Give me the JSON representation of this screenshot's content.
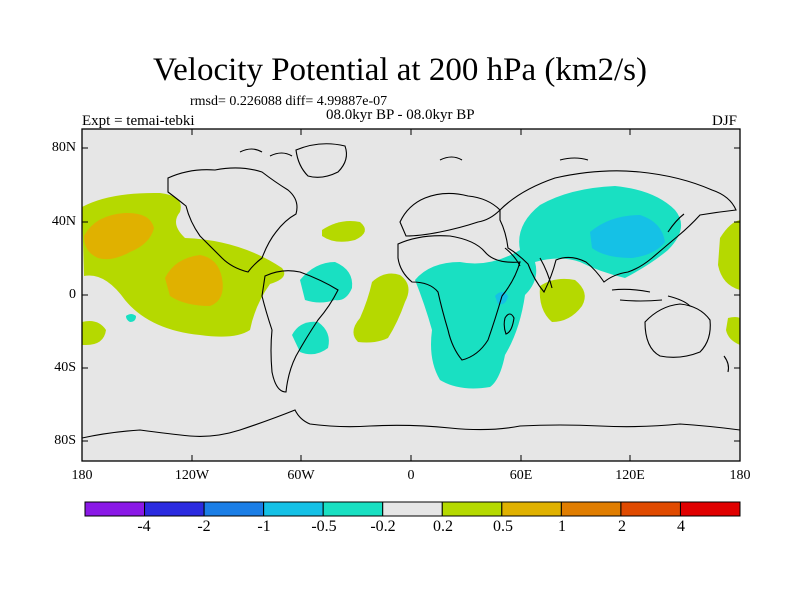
{
  "title": "Velocity Potential at 200 hPa (km2/s)",
  "stats": "rmsd= 0.226088 diff= 4.99887e-07",
  "period": "08.0kyr BP - 08.0kyr BP",
  "experiment": "Expt = temai-tebki",
  "season": "DJF",
  "y_ticks": [
    "80N",
    "40N",
    "0",
    "40S",
    "80S"
  ],
  "x_ticks": [
    "180",
    "120W",
    "60W",
    "0",
    "60E",
    "120E",
    "180"
  ],
  "colorbar": {
    "labels": [
      "-4",
      "-2",
      "-1",
      "-0.5",
      "-0.2",
      "0.2",
      "0.5",
      "1",
      "2",
      "4"
    ],
    "colors": [
      "#8a18e6",
      "#2b2be0",
      "#1b7ee6",
      "#15c1e6",
      "#19e0c2",
      "#e6e6e6",
      "#b5d900",
      "#e0b100",
      "#e07d00",
      "#e04a00",
      "#e00000"
    ]
  },
  "colors": {
    "ocean_background": "#e6e6e6",
    "positive_light": "#b5d900",
    "positive_medium": "#e0b100",
    "negative_light": "#19e0c2",
    "negative_medium": "#15c1e6"
  }
}
